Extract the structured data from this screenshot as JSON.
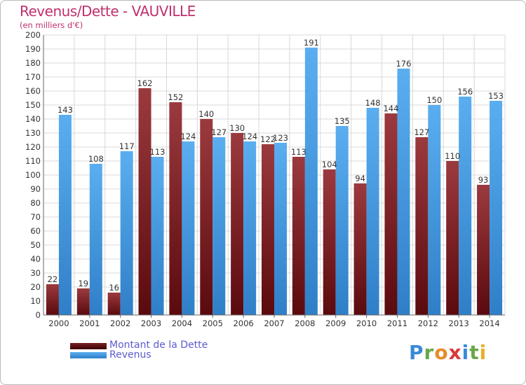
{
  "title": "Revenus/Dette - VAUVILLE",
  "subtitle": "(en milliers d'€)",
  "legend": {
    "debt_label": "Montant de la Dette",
    "revenue_label": "Revenus"
  },
  "logo_text": "Proxiti",
  "colors": {
    "debt_light": "#9b3a3e",
    "debt_dark": "#5a0a0e",
    "revenue_light": "#5aaef0",
    "revenue_dark": "#2f7fc8",
    "title": "#c0306d"
  },
  "chart_data": {
    "type": "bar",
    "title": "Revenus/Dette - VAUVILLE",
    "subtitle": "(en milliers d'€)",
    "categories": [
      "2000",
      "2001",
      "2002",
      "2003",
      "2004",
      "2005",
      "2006",
      "2007",
      "2008",
      "2009",
      "2010",
      "2011",
      "2012",
      "2013",
      "2014"
    ],
    "series": [
      {
        "name": "Montant de la Dette",
        "values": [
          22,
          19,
          16,
          162,
          152,
          140,
          130,
          122,
          113,
          104,
          94,
          144,
          127,
          110,
          93
        ]
      },
      {
        "name": "Revenus",
        "values": [
          143,
          108,
          117,
          113,
          124,
          127,
          124,
          123,
          191,
          135,
          148,
          176,
          150,
          156,
          153
        ]
      }
    ],
    "ylim": [
      0,
      200
    ],
    "ytick_step": 10,
    "grid": true,
    "legend_position": "bottom-left"
  }
}
